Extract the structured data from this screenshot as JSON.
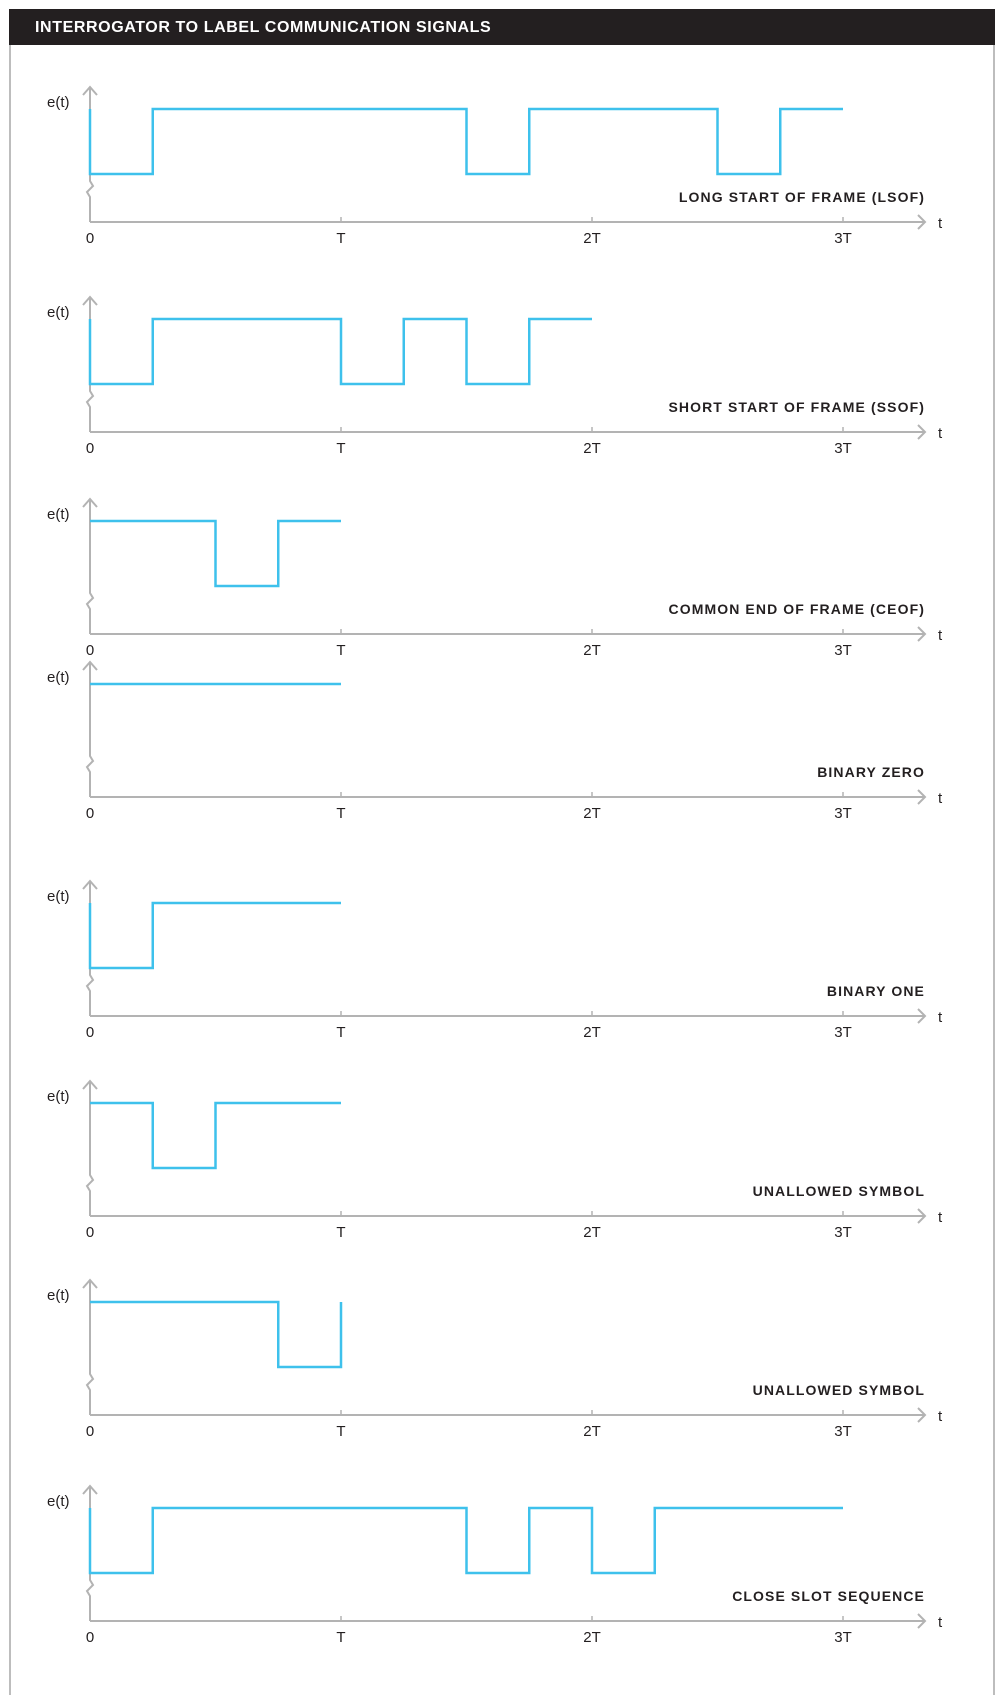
{
  "header": {
    "title": "INTERROGATOR TO LABEL COMMUNICATION SIGNALS"
  },
  "axis_labels": {
    "y": "e(t)",
    "x": "t",
    "ticks": [
      "0",
      "T",
      "2T",
      "3T"
    ]
  },
  "colors": {
    "signal": "#3ec1ec",
    "axis": "#b3b3b3",
    "header_bg": "#231f20"
  },
  "diagrams": [
    {
      "title": "LONG START OF FRAME (LSOF)",
      "points": [
        [
          0,
          1
        ],
        [
          0,
          0
        ],
        [
          0.25,
          0
        ],
        [
          0.25,
          1
        ],
        [
          1.5,
          1
        ],
        [
          1.5,
          0
        ],
        [
          1.75,
          0
        ],
        [
          1.75,
          1
        ],
        [
          2.5,
          1
        ],
        [
          2.5,
          0
        ],
        [
          2.75,
          0
        ],
        [
          2.75,
          1
        ],
        [
          3,
          1
        ]
      ]
    },
    {
      "title": "SHORT START OF FRAME (SSOF)",
      "points": [
        [
          0,
          1
        ],
        [
          0,
          0
        ],
        [
          0.25,
          0
        ],
        [
          0.25,
          1
        ],
        [
          1,
          1
        ],
        [
          1,
          0
        ],
        [
          1.25,
          0
        ],
        [
          1.25,
          1
        ],
        [
          1.5,
          1
        ],
        [
          1.5,
          0
        ],
        [
          1.75,
          0
        ],
        [
          1.75,
          1
        ],
        [
          2,
          1
        ]
      ]
    },
    {
      "title": "COMMON END OF FRAME (CEOF)",
      "points": [
        [
          0,
          1
        ],
        [
          0.5,
          1
        ],
        [
          0.5,
          0
        ],
        [
          0.75,
          0
        ],
        [
          0.75,
          1
        ],
        [
          1,
          1
        ]
      ]
    },
    {
      "title": "BINARY ZERO",
      "points": [
        [
          0,
          1
        ],
        [
          1,
          1
        ]
      ]
    },
    {
      "title": "BINARY ONE",
      "points": [
        [
          0,
          1
        ],
        [
          0,
          0
        ],
        [
          0.25,
          0
        ],
        [
          0.25,
          1
        ],
        [
          1,
          1
        ]
      ]
    },
    {
      "title": "UNALLOWED SYMBOL",
      "points": [
        [
          0,
          1
        ],
        [
          0.25,
          1
        ],
        [
          0.25,
          0
        ],
        [
          0.5,
          0
        ],
        [
          0.5,
          1
        ],
        [
          1,
          1
        ]
      ]
    },
    {
      "title": "UNALLOWED SYMBOL",
      "points": [
        [
          0,
          1
        ],
        [
          0.75,
          1
        ],
        [
          0.75,
          0
        ],
        [
          1,
          0
        ],
        [
          1,
          1
        ]
      ]
    },
    {
      "title": "CLOSE SLOT SEQUENCE",
      "points": [
        [
          0,
          1
        ],
        [
          0,
          0
        ],
        [
          0.25,
          0
        ],
        [
          0.25,
          1
        ],
        [
          1.5,
          1
        ],
        [
          1.5,
          0
        ],
        [
          1.75,
          0
        ],
        [
          1.75,
          1
        ],
        [
          2,
          1
        ],
        [
          2,
          0
        ],
        [
          2.25,
          0
        ],
        [
          2.25,
          1
        ],
        [
          3,
          1
        ]
      ]
    }
  ]
}
